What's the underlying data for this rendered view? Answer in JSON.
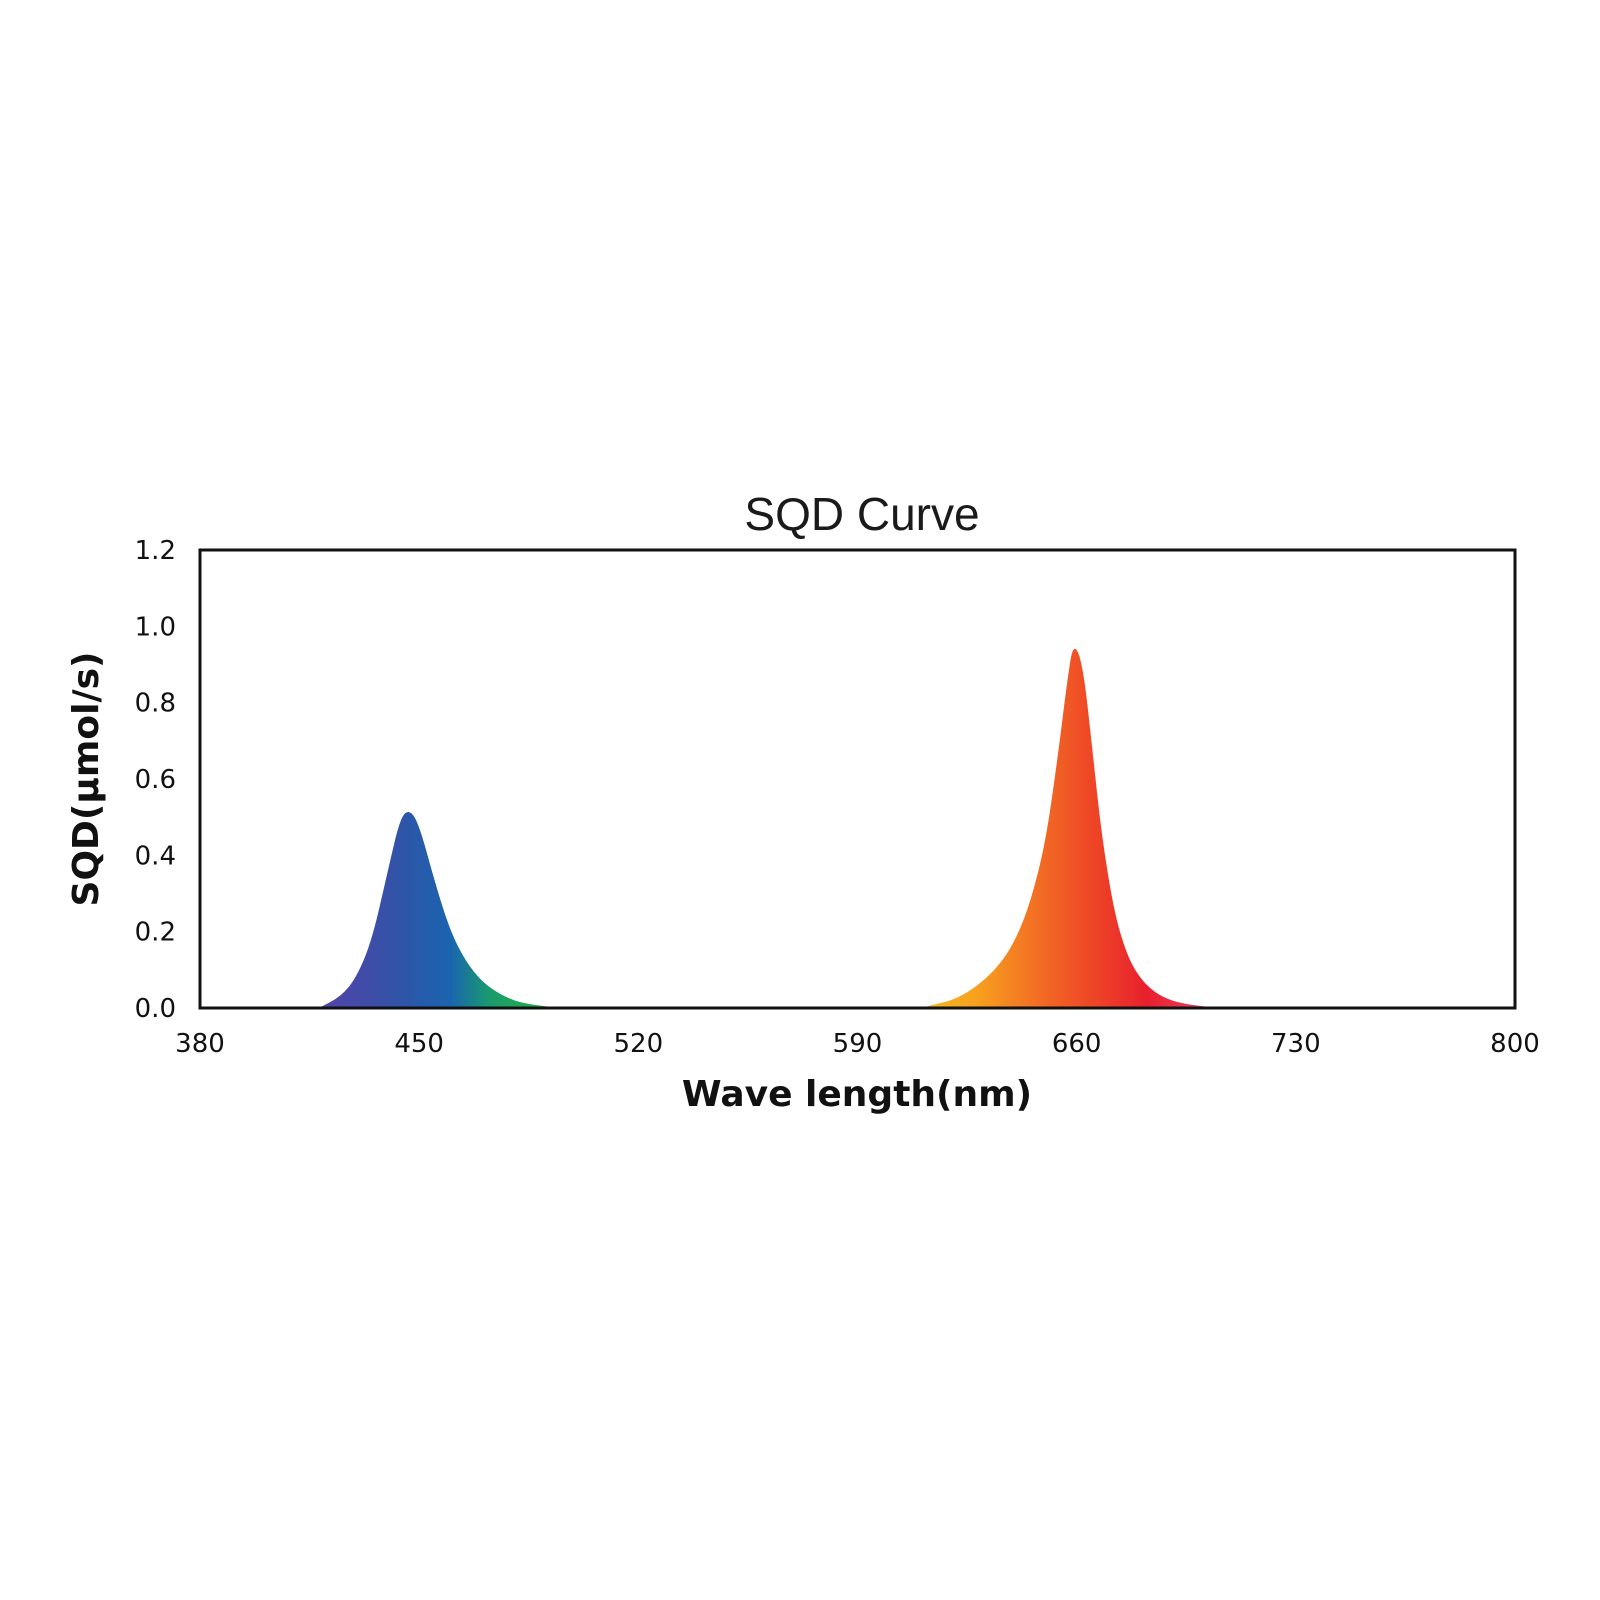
{
  "chart_data": {
    "type": "area",
    "title": "SQD Curve",
    "xlabel": "Wave length(nm)",
    "ylabel": "SQD(μmol/s)",
    "xlim": [
      380,
      800
    ],
    "ylim": [
      0,
      1.2
    ],
    "x_ticks": [
      "380",
      "450",
      "520",
      "590",
      "660",
      "730",
      "800"
    ],
    "y_ticks": [
      "0.0",
      "0.2",
      "0.4",
      "0.6",
      "0.8",
      "1.0",
      "1.2"
    ],
    "grid": false,
    "legend": "none",
    "fill": "visible-spectrum gradient",
    "series": [
      {
        "x": [
          418,
          425,
          430,
          435,
          440,
          444,
          447,
          450,
          455,
          460,
          465,
          470,
          475,
          480,
          485,
          490,
          495
        ],
        "y": [
          0.0,
          0.03,
          0.08,
          0.18,
          0.36,
          0.5,
          0.52,
          0.48,
          0.33,
          0.2,
          0.12,
          0.07,
          0.04,
          0.02,
          0.01,
          0.005,
          0.0
        ]
      },
      {
        "x": [
          610,
          615,
          620,
          625,
          630,
          635,
          640,
          645,
          650,
          654,
          657,
          659,
          662,
          665,
          668,
          672,
          676,
          680,
          685,
          690,
          695,
          700,
          705
        ],
        "y": [
          0.0,
          0.01,
          0.02,
          0.04,
          0.07,
          0.11,
          0.17,
          0.27,
          0.43,
          0.66,
          0.86,
          0.96,
          0.9,
          0.68,
          0.45,
          0.25,
          0.14,
          0.08,
          0.04,
          0.02,
          0.01,
          0.005,
          0.0
        ]
      }
    ]
  }
}
